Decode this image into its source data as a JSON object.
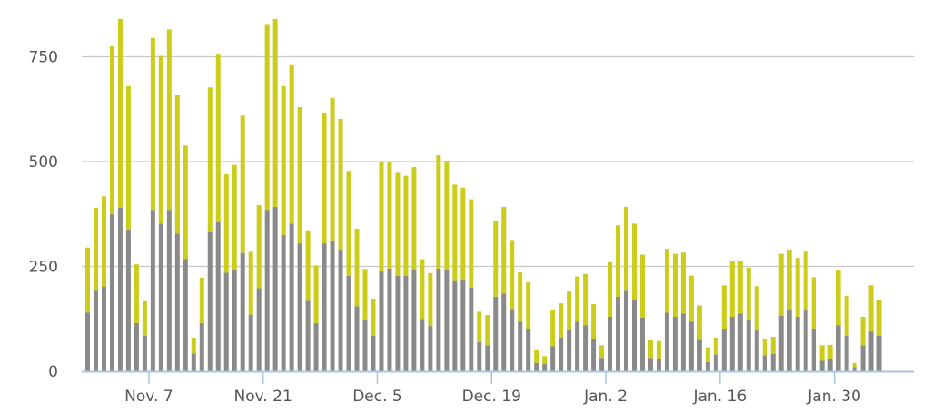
{
  "chart_data": {
    "type": "bar",
    "stacked": true,
    "title": "",
    "xlabel": "",
    "ylabel": "",
    "ylim": [
      0,
      900
    ],
    "y_ticks": [
      0,
      250,
      500,
      750
    ],
    "grid": "horizontal",
    "legend": "none",
    "x_tick_labels": [
      {
        "label": "Nov. 7",
        "index": 8
      },
      {
        "label": "Nov. 21",
        "index": 22
      },
      {
        "label": "Dec. 5",
        "index": 36
      },
      {
        "label": "Dec. 19",
        "index": 50
      },
      {
        "label": "Jan. 2",
        "index": 64
      },
      {
        "label": "Jan. 16",
        "index": 78
      },
      {
        "label": "Jan. 30",
        "index": 92
      }
    ],
    "colors": {
      "lower": "#8a8a8a",
      "upper": "#cccc1a",
      "grid": "#c8c8c8",
      "axis": "#a8c6e0",
      "text": "#555555"
    },
    "series": [
      {
        "values": [
          140,
          192,
          202,
          375,
          390,
          338,
          115,
          85,
          385,
          352,
          385,
          328,
          268,
          42,
          115,
          332,
          355,
          235,
          242,
          282,
          135,
          198,
          385,
          392,
          325,
          352,
          305,
          168,
          115,
          305,
          312,
          290,
          228,
          155,
          122,
          85,
          238,
          245,
          228,
          228,
          242,
          125,
          108,
          245,
          242,
          215,
          218,
          200,
          70,
          62,
          178,
          185,
          148,
          118,
          100,
          20,
          18,
          60,
          80,
          98,
          118,
          110,
          78,
          32,
          130,
          178,
          192,
          170,
          128,
          32,
          30,
          140,
          130,
          138,
          118,
          75,
          22,
          40,
          100,
          130,
          138,
          122,
          98,
          38,
          42,
          132,
          148,
          130,
          145,
          102,
          25,
          30,
          110,
          85,
          10,
          62,
          95,
          85
        ]
      },
      {
        "values": [
          155,
          198,
          215,
          400,
          450,
          342,
          140,
          82,
          410,
          400,
          430,
          330,
          270,
          38,
          108,
          345,
          400,
          235,
          250,
          328,
          150,
          198,
          443,
          448,
          355,
          378,
          325,
          168,
          137,
          312,
          340,
          312,
          250,
          185,
          122,
          88,
          262,
          255,
          245,
          238,
          245,
          142,
          126,
          270,
          260,
          230,
          220,
          210,
          72,
          72,
          180,
          207,
          165,
          118,
          112,
          30,
          18,
          85,
          82,
          92,
          108,
          122,
          82,
          30,
          130,
          170,
          200,
          182,
          150,
          42,
          42,
          152,
          150,
          145,
          110,
          82,
          35,
          40,
          105,
          132,
          125,
          125,
          105,
          40,
          40,
          148,
          142,
          140,
          140,
          122,
          37,
          33,
          130,
          95,
          10,
          68,
          110,
          85
        ]
      }
    ]
  }
}
